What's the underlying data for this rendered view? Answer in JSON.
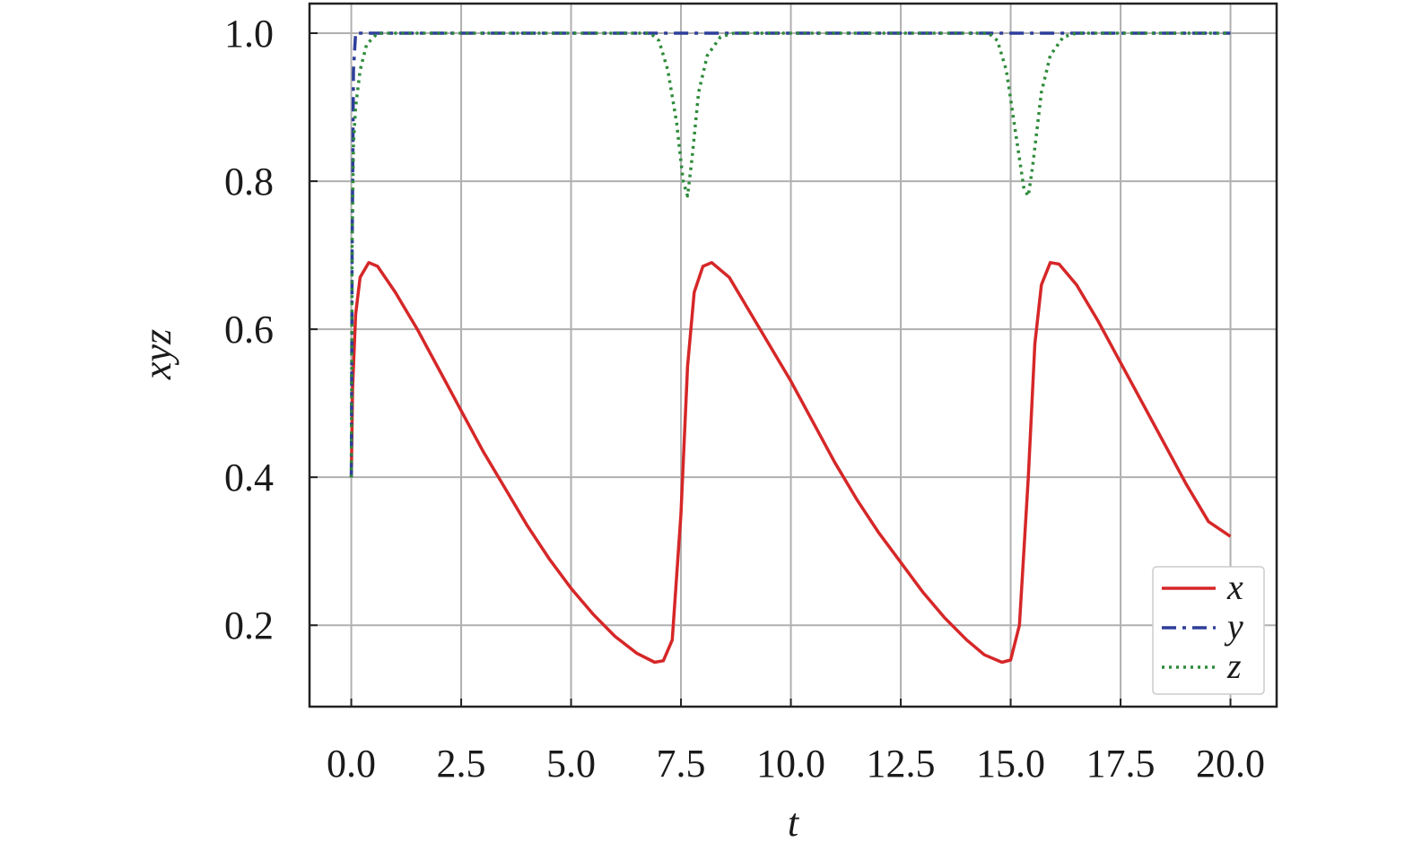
{
  "chart_data": {
    "type": "line",
    "xlabel": "t",
    "ylabel": "xyz",
    "xlim": [
      -0.95,
      21.05
    ],
    "ylim": [
      0.09,
      1.04
    ],
    "xticks": [
      0.0,
      2.5,
      5.0,
      7.5,
      10.0,
      12.5,
      15.0,
      17.5,
      20.0
    ],
    "xtick_labels": [
      "0.0",
      "2.5",
      "5.0",
      "7.5",
      "10.0",
      "12.5",
      "15.0",
      "17.5",
      "20.0"
    ],
    "yticks": [
      0.2,
      0.4,
      0.6,
      0.8,
      1.0
    ],
    "ytick_labels": [
      "0.2",
      "0.4",
      "0.6",
      "0.8",
      "1.0"
    ],
    "grid": true,
    "legend_position": "bottom-right",
    "series": [
      {
        "name": "x",
        "color": "#d62728",
        "style": "solid",
        "points": [
          [
            0.0,
            0.4
          ],
          [
            0.03,
            0.52
          ],
          [
            0.1,
            0.62
          ],
          [
            0.2,
            0.67
          ],
          [
            0.4,
            0.69
          ],
          [
            0.6,
            0.685
          ],
          [
            1.0,
            0.65
          ],
          [
            1.5,
            0.6
          ],
          [
            2.0,
            0.545
          ],
          [
            2.5,
            0.49
          ],
          [
            3.0,
            0.435
          ],
          [
            3.5,
            0.385
          ],
          [
            4.0,
            0.335
          ],
          [
            4.5,
            0.29
          ],
          [
            5.0,
            0.25
          ],
          [
            5.5,
            0.215
          ],
          [
            6.0,
            0.185
          ],
          [
            6.5,
            0.162
          ],
          [
            6.9,
            0.15
          ],
          [
            7.1,
            0.152
          ],
          [
            7.3,
            0.18
          ],
          [
            7.5,
            0.35
          ],
          [
            7.65,
            0.55
          ],
          [
            7.8,
            0.65
          ],
          [
            8.0,
            0.685
          ],
          [
            8.2,
            0.69
          ],
          [
            8.6,
            0.67
          ],
          [
            9.0,
            0.63
          ],
          [
            9.5,
            0.58
          ],
          [
            10.0,
            0.53
          ],
          [
            10.5,
            0.475
          ],
          [
            11.0,
            0.42
          ],
          [
            11.5,
            0.37
          ],
          [
            12.0,
            0.325
          ],
          [
            12.5,
            0.285
          ],
          [
            13.0,
            0.245
          ],
          [
            13.5,
            0.21
          ],
          [
            14.0,
            0.18
          ],
          [
            14.4,
            0.16
          ],
          [
            14.8,
            0.15
          ],
          [
            15.0,
            0.153
          ],
          [
            15.2,
            0.2
          ],
          [
            15.4,
            0.4
          ],
          [
            15.55,
            0.58
          ],
          [
            15.7,
            0.66
          ],
          [
            15.9,
            0.69
          ],
          [
            16.1,
            0.688
          ],
          [
            16.5,
            0.66
          ],
          [
            17.0,
            0.61
          ],
          [
            17.5,
            0.555
          ],
          [
            18.0,
            0.5
          ],
          [
            18.5,
            0.445
          ],
          [
            19.0,
            0.39
          ],
          [
            19.5,
            0.34
          ],
          [
            20.0,
            0.32
          ]
        ]
      },
      {
        "name": "y",
        "color": "#2e3e9a",
        "style": "dashdot",
        "points": [
          [
            0.0,
            0.4
          ],
          [
            0.02,
            0.7
          ],
          [
            0.05,
            0.95
          ],
          [
            0.1,
            1.0
          ],
          [
            20.0,
            1.0
          ]
        ]
      },
      {
        "name": "z",
        "color": "#2e8b3a",
        "style": "dotted",
        "points": [
          [
            0.0,
            0.4
          ],
          [
            0.02,
            0.72
          ],
          [
            0.05,
            0.85
          ],
          [
            0.1,
            0.9
          ],
          [
            0.2,
            0.95
          ],
          [
            0.35,
            0.985
          ],
          [
            0.6,
            1.0
          ],
          [
            6.8,
            1.0
          ],
          [
            7.0,
            0.99
          ],
          [
            7.2,
            0.95
          ],
          [
            7.4,
            0.88
          ],
          [
            7.55,
            0.8
          ],
          [
            7.65,
            0.78
          ],
          [
            7.75,
            0.83
          ],
          [
            7.9,
            0.92
          ],
          [
            8.1,
            0.97
          ],
          [
            8.4,
            0.995
          ],
          [
            8.7,
            1.0
          ],
          [
            14.5,
            1.0
          ],
          [
            14.7,
            0.99
          ],
          [
            14.9,
            0.95
          ],
          [
            15.1,
            0.87
          ],
          [
            15.3,
            0.79
          ],
          [
            15.4,
            0.78
          ],
          [
            15.5,
            0.82
          ],
          [
            15.7,
            0.92
          ],
          [
            15.9,
            0.97
          ],
          [
            16.2,
            0.995
          ],
          [
            16.5,
            1.0
          ],
          [
            20.0,
            1.0
          ]
        ]
      }
    ]
  }
}
